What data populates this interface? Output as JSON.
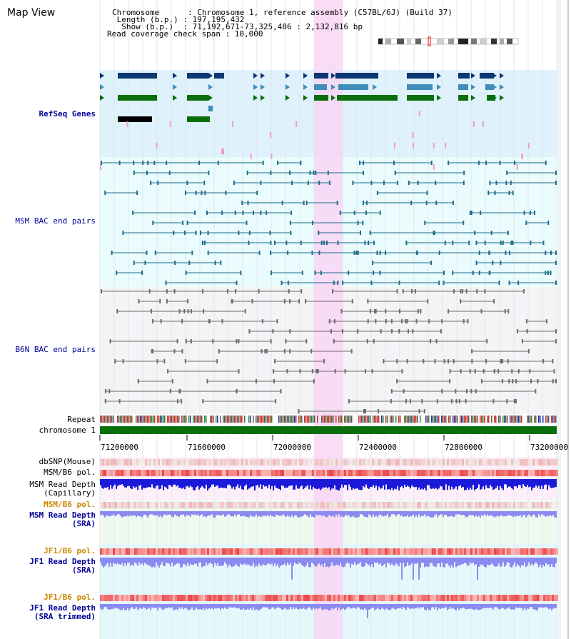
{
  "header": {
    "title": "Map View",
    "chromosome_line": "Chromosome      : Chromosome 1, reference assembly (C57BL/6J) (Build 37)",
    "length_line": " Length (b.p.) : 197,195,432",
    "show_line": "  Show (b.p.)  : 71,192,671-73,325,486 : 2,132,816 bp",
    "coverage_line": "Read coverage check span : 10,000"
  },
  "axis_ticks": [
    "71200000",
    "71600000",
    "72000000",
    "72400000",
    "72800000",
    "73200000"
  ],
  "tracks": {
    "refseq_genes": "RefSeq Genes",
    "msm_bac": "MSM BAC end pairs",
    "b6n_bac": "B6N BAC end pairs",
    "repeat": "Repeat",
    "chromosome": "chromosome 1",
    "dbsnp": "dbSNP(Mouse)",
    "msm_b6_pol": "MSM/B6 pol.",
    "msm_depth_cap_1": "MSM Read Depth",
    "msm_depth_cap_2": "(Capillary)",
    "msm_b6_pol_sra": "MSM/B6 pol.",
    "msm_depth_sra_1": "MSM Read Depth",
    "msm_depth_sra_2": "(SRA)",
    "jf1_pol_1": "JF1/B6 pol.",
    "jf1_depth_sra_1": "JF1 Read Depth",
    "jf1_depth_sra_2": "(SRA)",
    "jf1_pol_2": "JF1/B6 pol.",
    "jf1_depth_trim_1": "JF1 Read Depth",
    "jf1_depth_trim_2": "(SRA trimmed)"
  },
  "colors": {
    "refseq_bg": "#dff1fb",
    "bac_bg": "#eafcfd",
    "b6n_bg": "#f4f4f7",
    "highlight": "#f8d6f4",
    "gene_dark": "#0b3873",
    "gene_mid": "#3f8db8",
    "gene_green": "#0a6e0a",
    "bac_line": "#1f6a8a",
    "b6n_line": "#6a6a6a",
    "chrom_green": "#0a6e0a",
    "depth_dark": "#1a1ad8",
    "depth_light": "#8a8af0",
    "pol_red": "#f07070",
    "label_blue": "#000099",
    "label_orange": "#cc8800"
  }
}
